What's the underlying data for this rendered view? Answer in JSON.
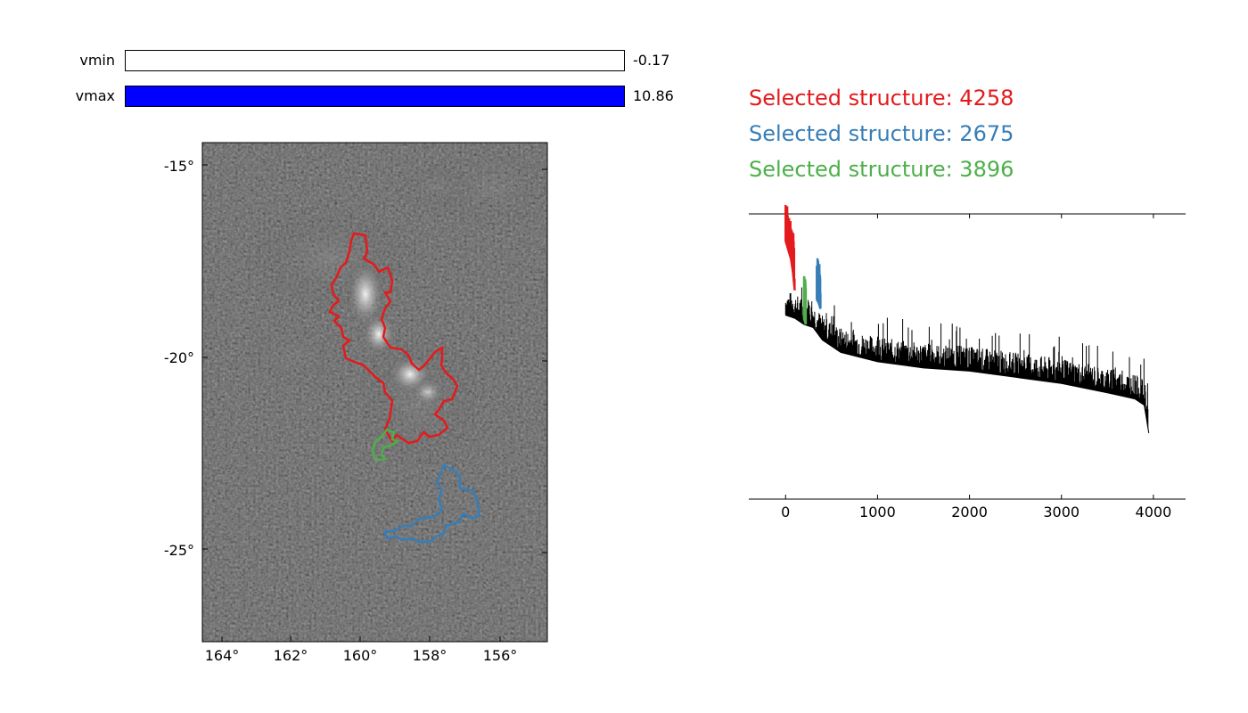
{
  "sliders": {
    "vmin": {
      "label": "vmin",
      "value": "-0.17",
      "fill_fraction": 0.0,
      "color": "#ffffff"
    },
    "vmax": {
      "label": "vmax",
      "value": "10.86",
      "fill_fraction": 1.0,
      "color": "#0000ff"
    }
  },
  "image_panel": {
    "y_ticks": [
      "-15°",
      "-20°",
      "-25°"
    ],
    "x_ticks": [
      "164°",
      "162°",
      "160°",
      "158°",
      "156°"
    ],
    "background": "#1a1a1a",
    "contour_colors": {
      "red": "#e41a1c",
      "blue": "#377eb8",
      "green": "#4daf4a"
    }
  },
  "selections": [
    {
      "prefix": "Selected structure: ",
      "id": "4258",
      "color": "#e41a1c"
    },
    {
      "prefix": "Selected structure: ",
      "id": "2675",
      "color": "#377eb8"
    },
    {
      "prefix": "Selected structure: ",
      "id": "3896",
      "color": "#4daf4a"
    }
  ],
  "chart_data": {
    "type": "line",
    "title": "",
    "xlabel": "",
    "ylabel": "",
    "xlim": [
      -400,
      4350
    ],
    "x_ticks": [
      0,
      1000,
      2000,
      3000,
      4000
    ],
    "series": [
      {
        "color": "#000000",
        "x": [
          0,
          100,
          200,
          300,
          400,
          600,
          1000,
          1500,
          2000,
          2500,
          3000,
          3500,
          3800,
          3900,
          3950
        ],
        "y": [
          0.38,
          0.37,
          0.35,
          0.34,
          0.3,
          0.26,
          0.23,
          0.21,
          0.2,
          0.18,
          0.16,
          0.13,
          0.11,
          0.09,
          0.0
        ]
      },
      {
        "color": "#e41a1c",
        "x": [
          0,
          20,
          40,
          60,
          80,
          100
        ],
        "y": [
          0.62,
          0.6,
          0.58,
          0.56,
          0.52,
          0.46
        ]
      },
      {
        "color": "#377eb8",
        "x": [
          340,
          360,
          380
        ],
        "y": [
          0.43,
          0.42,
          0.4
        ]
      },
      {
        "color": "#4daf4a",
        "x": [
          200,
          210,
          220
        ],
        "y": [
          0.37,
          0.36,
          0.35
        ]
      }
    ]
  }
}
